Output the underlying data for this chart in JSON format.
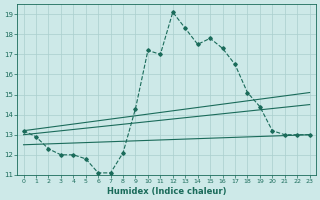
{
  "xlabel": "Humidex (Indice chaleur)",
  "x_values": [
    0,
    1,
    2,
    3,
    4,
    5,
    6,
    7,
    8,
    9,
    10,
    11,
    12,
    13,
    14,
    15,
    16,
    17,
    18,
    19,
    20,
    21,
    22,
    23
  ],
  "series1": [
    13.2,
    12.9,
    12.3,
    12.0,
    12.0,
    11.8,
    11.1,
    11.1,
    12.1,
    14.3,
    17.2,
    17.0,
    19.1,
    18.3,
    17.5,
    17.8,
    17.3,
    16.5,
    15.1,
    14.4,
    13.2,
    13.0,
    13.0,
    13.0
  ],
  "line1_x": [
    0,
    23
  ],
  "line1_y": [
    13.2,
    15.1
  ],
  "line2_x": [
    0,
    23
  ],
  "line2_y": [
    13.0,
    14.5
  ],
  "line3_x": [
    0,
    23
  ],
  "line3_y": [
    12.5,
    13.0
  ],
  "line_color": "#1a6b5a",
  "bg_color": "#cde9e8",
  "grid_color": "#aacfce",
  "ylim": [
    11,
    19.5
  ],
  "yticks": [
    11,
    12,
    13,
    14,
    15,
    16,
    17,
    18,
    19
  ],
  "xlim": [
    -0.5,
    23.5
  ]
}
